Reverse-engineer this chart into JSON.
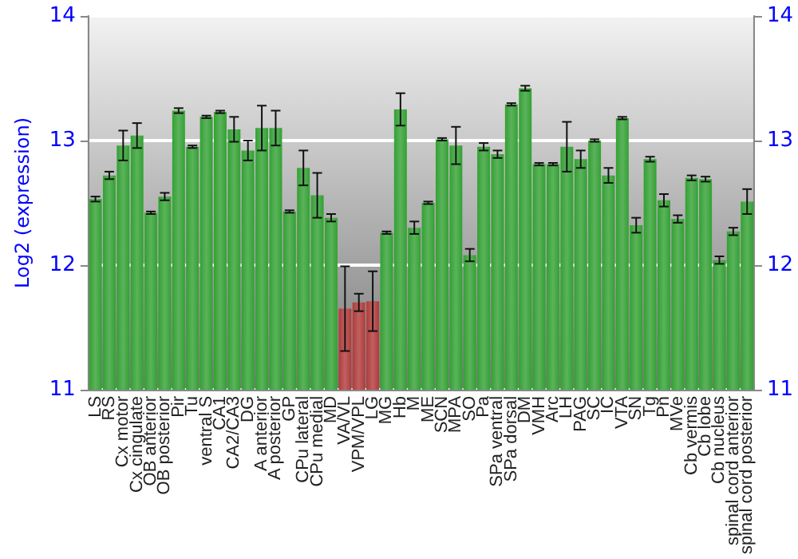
{
  "chart_data": {
    "type": "bar",
    "ylabel": "Log2 (expression)",
    "categories": [
      "LS",
      "RS",
      "Cx motor",
      "Cx cingulate",
      "OB anterior",
      "OB posterior",
      "Pir",
      "Tu",
      "ventral S",
      "CA1",
      "CA2/CA3",
      "DG",
      "A anterior",
      "A posterior",
      "GP",
      "CPu lateral",
      "CPu medial",
      "MD",
      "VA/VL",
      "VPM/VPL",
      "LG",
      "MG",
      "Hb",
      "M",
      "ME",
      "SCN",
      "MPA",
      "SO",
      "Pa",
      "SPa ventral",
      "SPa dorsal",
      "DM",
      "VMH",
      "Arc",
      "LH",
      "PAG",
      "SC",
      "IC",
      "VTA",
      "SN",
      "Tg",
      "Pn",
      "MVe",
      "Cb vermis",
      "Cb lobe",
      "Cb nucleus",
      "spinal cord anterior",
      "spinal cord posterior"
    ],
    "values": [
      12.53,
      12.72,
      12.96,
      13.04,
      12.42,
      12.55,
      13.24,
      12.95,
      13.19,
      13.23,
      13.09,
      12.92,
      13.1,
      13.1,
      12.43,
      12.78,
      12.56,
      12.38,
      11.65,
      11.7,
      11.71,
      12.26,
      13.25,
      12.3,
      12.5,
      13.01,
      12.96,
      12.08,
      12.95,
      12.89,
      13.29,
      13.42,
      12.81,
      12.81,
      12.95,
      12.85,
      13.0,
      12.72,
      13.18,
      12.32,
      12.85,
      12.52,
      12.37,
      12.7,
      12.69,
      12.04,
      12.27,
      12.51
    ],
    "errors": [
      0.02,
      0.03,
      0.12,
      0.1,
      0.01,
      0.03,
      0.02,
      0.01,
      0.01,
      0.01,
      0.1,
      0.08,
      0.18,
      0.14,
      0.01,
      0.14,
      0.18,
      0.03,
      0.34,
      0.07,
      0.24,
      0.01,
      0.13,
      0.05,
      0.01,
      0.01,
      0.15,
      0.05,
      0.03,
      0.03,
      0.01,
      0.02,
      0.01,
      0.01,
      0.2,
      0.07,
      0.01,
      0.06,
      0.01,
      0.06,
      0.02,
      0.05,
      0.03,
      0.02,
      0.02,
      0.03,
      0.03,
      0.1
    ],
    "colors": [
      "#33a033",
      "#33a033",
      "#33a033",
      "#33a033",
      "#33a033",
      "#33a033",
      "#33a033",
      "#33a033",
      "#33a033",
      "#33a033",
      "#33a033",
      "#33a033",
      "#33a033",
      "#33a033",
      "#33a033",
      "#33a033",
      "#33a033",
      "#33a033",
      "#b03a3a",
      "#b03a3a",
      "#b03a3a",
      "#33a033",
      "#33a033",
      "#33a033",
      "#33a033",
      "#33a033",
      "#33a033",
      "#33a033",
      "#33a033",
      "#33a033",
      "#33a033",
      "#33a033",
      "#33a033",
      "#33a033",
      "#33a033",
      "#33a033",
      "#33a033",
      "#33a033",
      "#33a033",
      "#33a033",
      "#33a033",
      "#33a033",
      "#33a033",
      "#33a033",
      "#33a033",
      "#33a033",
      "#33a033",
      "#33a033"
    ],
    "ylim": [
      11,
      14
    ],
    "yticks": [
      11,
      12,
      13,
      14
    ],
    "y2lim": [
      11,
      14
    ],
    "y2ticks": [
      11,
      12,
      13,
      14
    ],
    "grid": "y"
  }
}
